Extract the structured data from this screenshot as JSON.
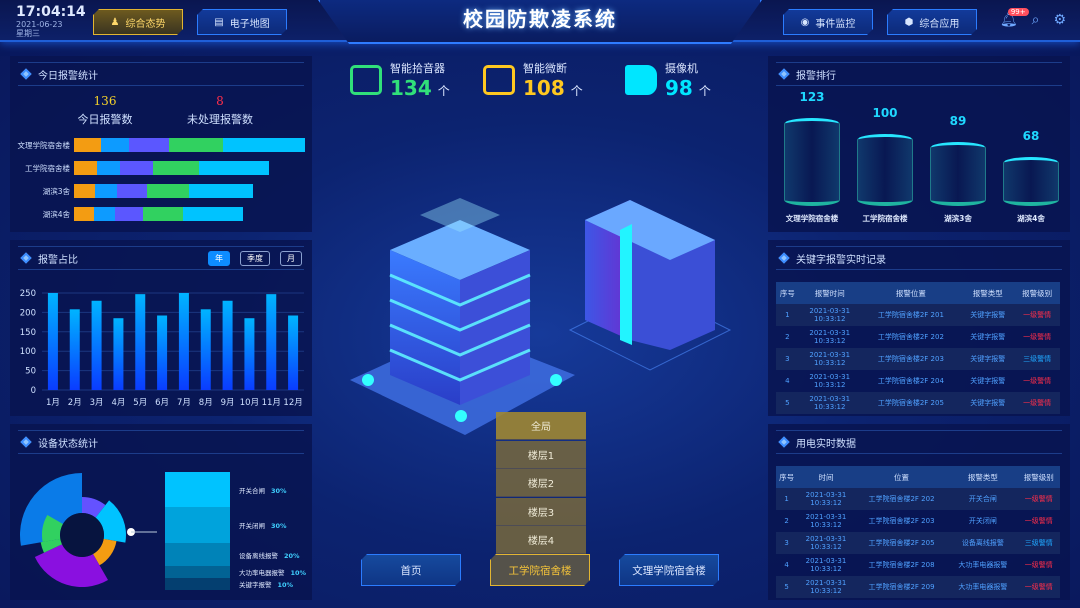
{
  "header": {
    "time": "17:04:14",
    "date": "2021-06-23",
    "weekday": "星期三",
    "title": "校园防欺凌系统",
    "nav_left": [
      {
        "label": "综合态势",
        "icon": "people-icon",
        "active": true
      },
      {
        "label": "电子地图",
        "icon": "map-doc-icon",
        "active": false
      }
    ],
    "nav_right": [
      {
        "label": "事件监控",
        "icon": "camera-icon"
      },
      {
        "label": "综合应用",
        "icon": "cube-icon"
      }
    ],
    "notification_badge": "99+"
  },
  "today_alarms": {
    "title": "今日报警统计",
    "total": "136",
    "total_label": "今日报警数",
    "unhandled": "8",
    "unhandled_label": "未处理报警数",
    "chart_data": {
      "type": "bar",
      "orientation": "horizontal",
      "stacked": true,
      "categories": [
        "文理学院宿舍楼",
        "工学院宿舍楼",
        "湖滨3舍",
        "湖滨4舍"
      ],
      "series": [
        {
          "color": "#f39c12",
          "values": [
            27,
            23,
            21,
            20
          ]
        },
        {
          "color": "#0d9bff",
          "values": [
            28,
            23,
            22,
            21
          ]
        },
        {
          "color": "#5b57ff",
          "values": [
            40,
            33,
            30,
            28
          ]
        },
        {
          "color": "#31d160",
          "values": [
            54,
            46,
            42,
            40
          ]
        },
        {
          "color": "#00c3ff",
          "values": [
            82,
            70,
            64,
            60
          ]
        }
      ]
    }
  },
  "alarm_ratio": {
    "title": "报警占比",
    "tabs": [
      "年",
      "季度",
      "月"
    ],
    "active_tab": "年",
    "chart_data": {
      "type": "bar",
      "categories": [
        "1月",
        "2月",
        "3月",
        "4月",
        "5月",
        "6月",
        "7月",
        "8月",
        "9月",
        "10月",
        "11月",
        "12月"
      ],
      "values": [
        250,
        208,
        230,
        185,
        247,
        192,
        250,
        208,
        230,
        185,
        247,
        192
      ],
      "ylim": [
        0,
        250
      ],
      "yticks": [
        "0",
        "50",
        "100",
        "150",
        "200",
        "250"
      ],
      "grid": true
    }
  },
  "device_status": {
    "title": "设备状态统计",
    "legend": [
      {
        "label": "开关合闸",
        "pct": "30%",
        "value": 30
      },
      {
        "label": "开关闭闸",
        "pct": "30%",
        "value": 30
      },
      {
        "label": "设备离线报警",
        "pct": "20%",
        "value": 20
      },
      {
        "label": "大功率电器报警",
        "pct": "10%",
        "value": 10
      },
      {
        "label": "关键字报警",
        "pct": "10%",
        "value": 10
      }
    ],
    "rose_colors": [
      "#0a7be8",
      "#6452ff",
      "#00c3ff",
      "#f39c12",
      "#8a10e0",
      "#31d160"
    ]
  },
  "stats": [
    {
      "label": "智能拾音器",
      "value": "134",
      "unit": "个",
      "color": "#31e07a",
      "icon": "sound-pickup-icon"
    },
    {
      "label": "智能微断",
      "value": "108",
      "unit": "个",
      "color": "#ffc820",
      "icon": "breaker-icon"
    },
    {
      "label": "摄像机",
      "value": "98",
      "unit": "个",
      "color": "#00e6ff",
      "icon": "video-camera-icon"
    }
  ],
  "floors": [
    "全局",
    "楼层1",
    "楼层2",
    "楼层3",
    "楼层4"
  ],
  "bottom_buttons": [
    {
      "label": "首页",
      "active": false
    },
    {
      "label": "工学院宿舍楼",
      "active": true
    },
    {
      "label": "文理学院宿舍楼",
      "active": false
    }
  ],
  "alarm_rank": {
    "title": "报警排行",
    "chart_data": {
      "type": "bar",
      "categories": [
        "文理学院宿舍楼",
        "工学院宿舍楼",
        "湖滨3舍",
        "湖滨4舍"
      ],
      "values": [
        123,
        100,
        89,
        68
      ]
    }
  },
  "keyword_records": {
    "title": "关键字报警实时记录",
    "columns": [
      "序号",
      "报警时间",
      "报警位置",
      "报警类型",
      "报警级别"
    ],
    "rows": [
      [
        "1",
        "2021-03-31",
        "10:33:12",
        "工学院宿舍楼2F 201",
        "关键字报警",
        "一级警情",
        "red"
      ],
      [
        "2",
        "2021-03-31",
        "10:33:12",
        "工学院宿舍楼2F 202",
        "关键字报警",
        "一级警情",
        "red"
      ],
      [
        "3",
        "2021-03-31",
        "10:33:12",
        "工学院宿舍楼2F 203",
        "关键字报警",
        "三级警情",
        "blue"
      ],
      [
        "4",
        "2021-03-31",
        "10:33:12",
        "工学院宿舍楼2F 204",
        "关键字报警",
        "一级警情",
        "red"
      ],
      [
        "5",
        "2021-03-31",
        "10:33:12",
        "工学院宿舍楼2F 205",
        "关键字报警",
        "一级警情",
        "red"
      ]
    ]
  },
  "power_records": {
    "title": "用电实时数据",
    "columns": [
      "序号",
      "时间",
      "位置",
      "报警类型",
      "报警级别"
    ],
    "rows": [
      [
        "1",
        "2021-03-31",
        "10:33:12",
        "工学院宿舍楼2F 202",
        "开关合闸",
        "一级警情",
        "red"
      ],
      [
        "2",
        "2021-03-31",
        "10:33:12",
        "工学院宿舍楼2F 203",
        "开关闭闸",
        "一级警情",
        "red"
      ],
      [
        "3",
        "2021-03-31",
        "10:33:12",
        "工学院宿舍楼2F 205",
        "设备离线报警",
        "三级警情",
        "blue"
      ],
      [
        "4",
        "2021-03-31",
        "10:33:12",
        "工学院宿舍楼2F 208",
        "大功率电器报警",
        "一级警情",
        "red"
      ],
      [
        "5",
        "2021-03-31",
        "10:33:12",
        "工学院宿舍楼2F 209",
        "大功率电器报警",
        "一级警情",
        "red"
      ]
    ]
  }
}
